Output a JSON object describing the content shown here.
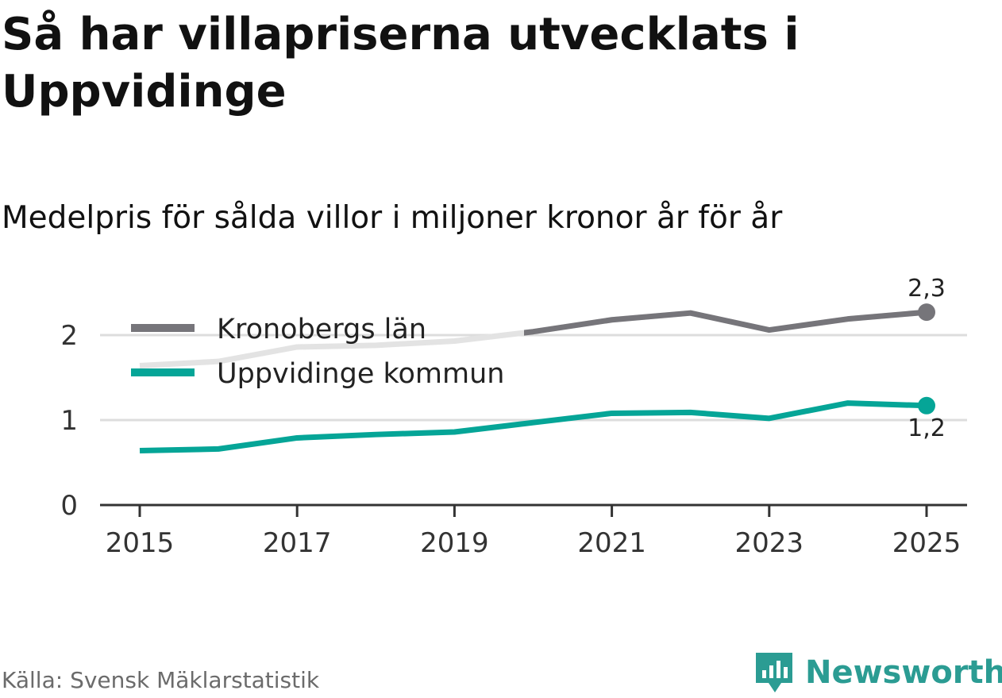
{
  "title": "Så har villapriserna utvecklats i Uppvidinge",
  "subtitle": "Medelpris för sålda villor i miljoner kronor år för år",
  "source": "Källa: Svensk Mäklarstatistik",
  "brand": "Newsworthy",
  "colors": {
    "lan": "#76757a",
    "lan_faded": "#e3e3e3",
    "kommun": "#05a597",
    "grid": "#dddddd",
    "axis": "#333333",
    "brand": "#2b9c93"
  },
  "chart_data": {
    "type": "line",
    "title": "Så har villapriserna utvecklats i Uppvidinge",
    "subtitle": "Medelpris för sålda villor i miljoner kronor år för år",
    "x": [
      2015,
      2016,
      2017,
      2018,
      2019,
      2020,
      2021,
      2022,
      2023,
      2024,
      2025
    ],
    "x_ticks": [
      "2015",
      "2017",
      "2019",
      "2021",
      "2023",
      "2025"
    ],
    "y_ticks": [
      "0",
      "1",
      "2"
    ],
    "ylim": [
      0,
      2.5
    ],
    "grid": true,
    "legend_position": "top-left",
    "series": [
      {
        "name": "Kronobergs län",
        "values": [
          1.64,
          1.69,
          1.86,
          1.88,
          1.93,
          2.04,
          2.18,
          2.26,
          2.06,
          2.19,
          2.27
        ],
        "end_label": "2,3"
      },
      {
        "name": "Uppvidinge kommun",
        "values": [
          0.64,
          0.66,
          0.79,
          0.83,
          0.86,
          0.97,
          1.08,
          1.09,
          1.02,
          1.2,
          1.17
        ],
        "end_label": "1,2"
      }
    ]
  }
}
